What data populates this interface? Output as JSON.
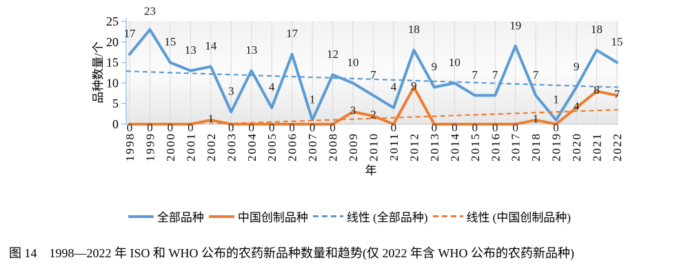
{
  "figure": {
    "caption": "图 14　1998—2022 年 ISO 和 WHO 公布的农药新品种数量和趋势(仅 2022 年含 WHO 公布的农药新品种)"
  },
  "legend": {
    "items": [
      {
        "label": "全部品种",
        "color": "#5B9BD5",
        "dash": false
      },
      {
        "label": "中国创制品种",
        "color": "#ED7D31",
        "dash": false
      },
      {
        "label": "线性 (全部品种)",
        "color": "#5B9BD5",
        "dash": true
      },
      {
        "label": "线性 (中国创制品种)",
        "color": "#ED7D31",
        "dash": true
      }
    ]
  },
  "chart_data": {
    "type": "line",
    "title": "",
    "xlabel": "年",
    "ylabel": "品种数量/个",
    "ylim": [
      0,
      25
    ],
    "yticks": [
      0,
      5,
      10,
      15,
      20,
      25
    ],
    "grid": "vertical",
    "legend_position": "bottom",
    "axis_color": "#9DC3E6",
    "xaxis_color": "#BFBFBF",
    "gridline_color": "#D9D9D9",
    "label_color": "#1a1a1a",
    "x": [
      1998,
      1999,
      2000,
      2001,
      2002,
      2003,
      2004,
      2005,
      2006,
      2007,
      2008,
      2009,
      2010,
      2011,
      2012,
      2013,
      2014,
      2015,
      2016,
      2017,
      2018,
      2019,
      2020,
      2021,
      2022
    ],
    "series": [
      {
        "name": "全部品种",
        "color": "#5B9BD5",
        "style": "solid",
        "values": [
          17,
          23,
          15,
          13,
          14,
          3,
          13,
          4,
          17,
          1,
          12,
          10,
          7,
          4,
          18,
          9,
          10,
          7,
          7,
          19,
          7,
          1,
          9,
          18,
          15
        ]
      },
      {
        "name": "中国创制品种",
        "color": "#ED7D31",
        "style": "solid",
        "values": [
          0,
          0,
          0,
          0,
          1,
          0,
          0,
          0,
          0,
          0,
          0,
          3,
          2,
          0,
          9,
          0,
          0,
          0,
          0,
          0,
          1,
          0,
          4,
          8,
          7
        ]
      }
    ],
    "trendlines": [
      {
        "name": "线性 (全部品种)",
        "color": "#5B9BD5",
        "start_value": 12.86,
        "end_value": 8.98
      },
      {
        "name": "线性 (中国创制品种)",
        "color": "#ED7D31",
        "start_value": -0.7,
        "end_value": 3.5
      }
    ]
  }
}
